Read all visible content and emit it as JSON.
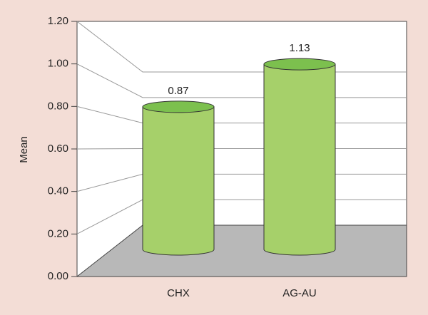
{
  "chart_data": {
    "type": "bar",
    "y_label": "Mean",
    "categories": [
      "CHX",
      "AG-AU"
    ],
    "values": [
      0.87,
      1.13
    ],
    "color": "#a6d06a",
    "ylim": [
      0,
      1.2
    ],
    "yticks": [
      {
        "value": 0,
        "label": "0.00"
      },
      {
        "value": 0.2,
        "label": "0.20"
      },
      {
        "value": 0.4,
        "label": "0.40"
      },
      {
        "value": 0.6,
        "label": "0.60"
      },
      {
        "value": 0.8,
        "label": "0.80"
      },
      {
        "value": 1.0,
        "label": "1.00"
      },
      {
        "value": 1.2,
        "label": "1.20"
      }
    ],
    "grid": true
  }
}
